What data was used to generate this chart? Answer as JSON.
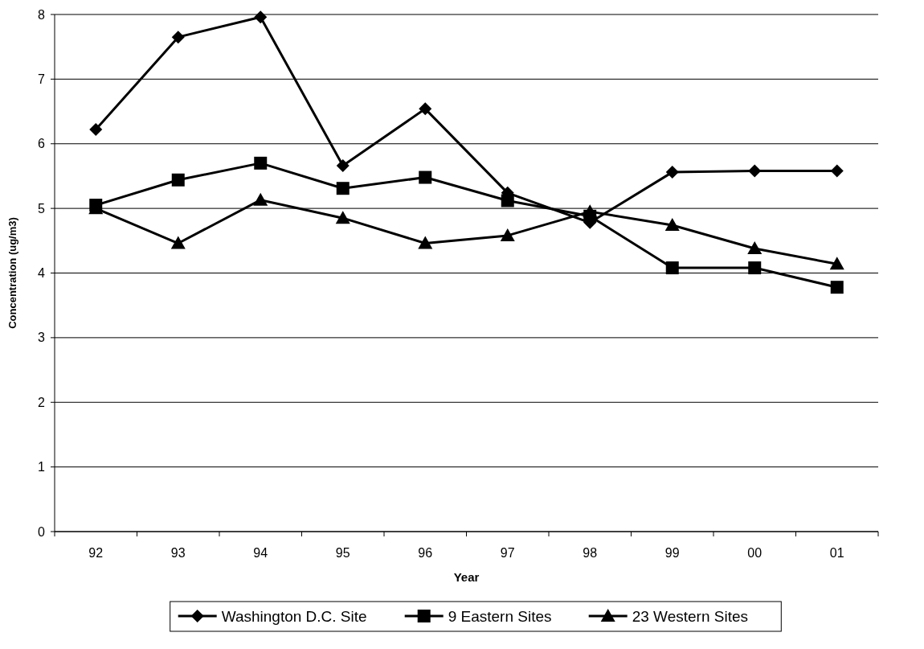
{
  "chart_data": {
    "type": "line",
    "xlabel": "Year",
    "ylabel": "Concentration (ug/m3)",
    "categories": [
      "92",
      "93",
      "94",
      "95",
      "96",
      "97",
      "98",
      "99",
      "00",
      "01"
    ],
    "series": [
      {
        "name": "Washington D.C. Site",
        "color": "#000000",
        "marker": "diamond",
        "values": [
          6.22,
          7.65,
          7.96,
          5.66,
          6.54,
          5.24,
          4.78,
          5.56,
          5.58,
          5.58
        ]
      },
      {
        "name": "9 Eastern Sites",
        "color": "#000000",
        "marker": "square",
        "values": [
          5.05,
          5.44,
          5.7,
          5.31,
          5.48,
          5.12,
          4.88,
          4.08,
          4.08,
          3.78
        ]
      },
      {
        "name": "23 Western Sites",
        "color": "#000000",
        "marker": "triangle",
        "values": [
          5.0,
          4.46,
          5.13,
          4.85,
          4.46,
          4.58,
          4.95,
          4.74,
          4.38,
          4.14
        ]
      }
    ],
    "ylim": [
      0,
      8
    ],
    "yticks": [
      0,
      1,
      2,
      3,
      4,
      5,
      6,
      7,
      8
    ],
    "grid": "y",
    "legend": "bottom",
    "line_style": "solid"
  }
}
